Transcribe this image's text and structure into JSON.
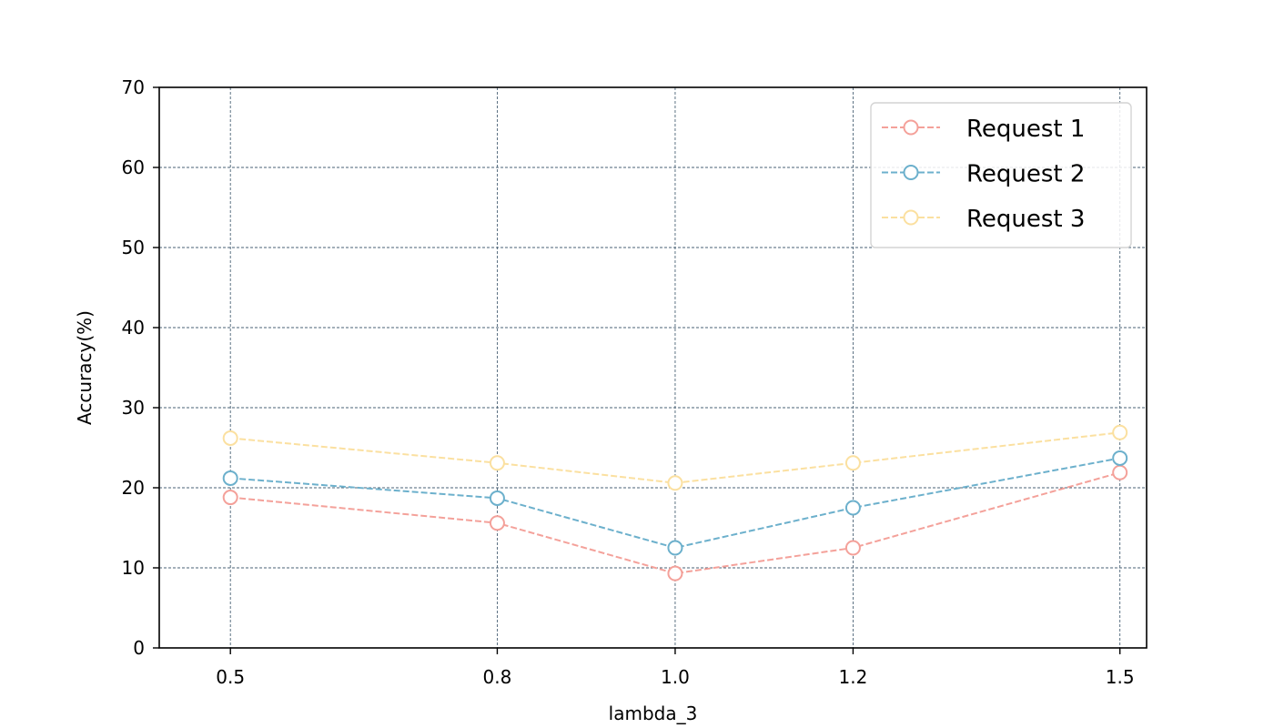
{
  "chart_data": {
    "type": "line",
    "xlabel": "lambda_3",
    "ylabel": "Accuracy(%)",
    "x": [
      0.5,
      0.8,
      1.0,
      1.2,
      1.5
    ],
    "x_tick_labels": [
      "0.5",
      "0.8",
      "1.0",
      "1.2",
      "1.5"
    ],
    "y_ticks": [
      0,
      10,
      20,
      30,
      40,
      50,
      60,
      70
    ],
    "y_tick_labels": [
      "0",
      "10",
      "20",
      "30",
      "40",
      "50",
      "60",
      "70"
    ],
    "xlim": [
      0.42,
      1.53
    ],
    "ylim": [
      0,
      70
    ],
    "grid": true,
    "legend_position": "top-right",
    "series": [
      {
        "name": "Request 1",
        "color": "#f4a19a",
        "values": [
          18.8,
          15.6,
          9.3,
          12.5,
          21.9
        ]
      },
      {
        "name": "Request 2",
        "color": "#6cb0cc",
        "values": [
          21.2,
          18.7,
          12.5,
          17.5,
          23.7
        ]
      },
      {
        "name": "Request 3",
        "color": "#fbe0a0",
        "values": [
          26.2,
          23.1,
          20.6,
          23.1,
          26.9
        ]
      }
    ]
  }
}
